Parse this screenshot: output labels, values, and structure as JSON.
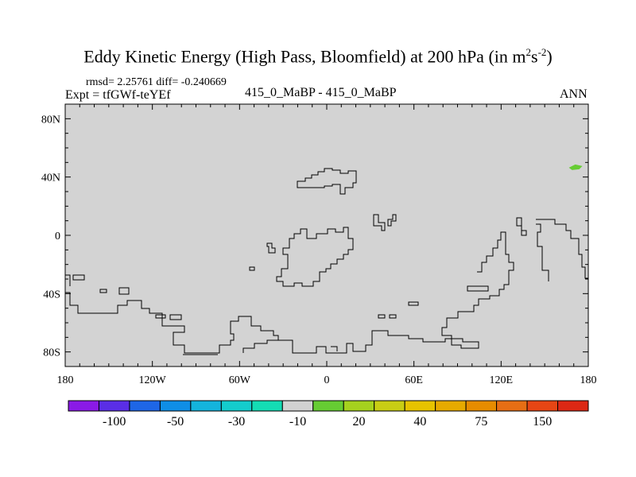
{
  "title": {
    "main": "Eddy Kinetic Energy (High Pass, Bloomfield) at 200 hPa (in m",
    "sup1": "2",
    "mid": "s",
    "sup2": "-2",
    "end": ")"
  },
  "stats": {
    "line": "rmsd= 2.25761 diff= -0.240669"
  },
  "expt": {
    "label": "Expt = tfGWf-teYEf"
  },
  "case": {
    "label": "415_0_MaBP - 415_0_MaBP"
  },
  "season": {
    "label": "ANN"
  },
  "chart_data": {
    "type": "heatmap",
    "title": "Eddy Kinetic Energy (High Pass, Bloomfield) at 200 hPa (in m^2 s^-2)",
    "projection": "cylindrical equidistant",
    "x": {
      "range": [
        -180,
        180
      ],
      "tick_labels": [
        "180",
        "120W",
        "60W",
        "0",
        "60E",
        "120E",
        "180"
      ],
      "tick_values": [
        -180,
        -120,
        -60,
        0,
        60,
        120,
        180
      ]
    },
    "y": {
      "range": [
        -90,
        90
      ],
      "tick_labels": [
        "80N",
        "40N",
        "0",
        "40S",
        "80S"
      ],
      "tick_values": [
        80,
        40,
        0,
        -40,
        -80
      ]
    },
    "background_value_band": "-10 to 10",
    "anomalies": [
      {
        "lon": 171,
        "lat": 47,
        "band": "10 to 20",
        "color": "#66cc33"
      }
    ],
    "colorbar": {
      "labels": [
        "-100",
        "-50",
        "-30",
        "-10",
        "20",
        "40",
        "75",
        "150"
      ],
      "colors": [
        "#8a1ae6",
        "#5a2ee6",
        "#1e66e6",
        "#0f8ee6",
        "#14b4dc",
        "#14cccc",
        "#14dcb4",
        "#d2d2d2",
        "#66cc33",
        "#a5d21e",
        "#c8cd14",
        "#e6c300",
        "#e6aa00",
        "#e68c00",
        "#e66e14",
        "#e64614",
        "#dc2814"
      ]
    }
  }
}
